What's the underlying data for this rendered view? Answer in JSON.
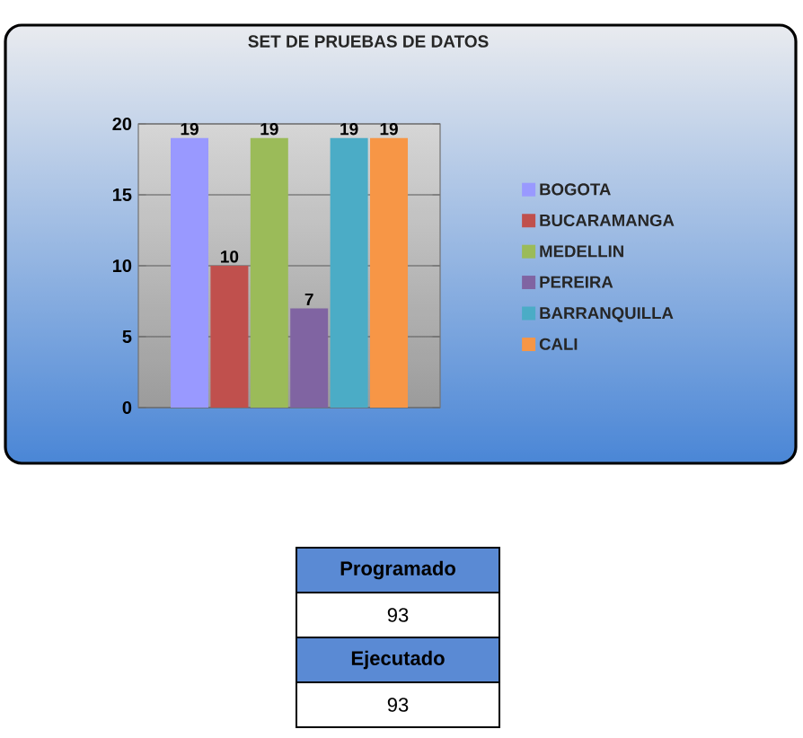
{
  "chart_data": [
    {
      "type": "bar",
      "title": "SET DE PRUEBAS DE DATOS",
      "categories": [
        null
      ],
      "series": [
        {
          "name": "BOGOTA",
          "color": "#9999ff",
          "values": [
            19
          ]
        },
        {
          "name": "BUCARAMANGA",
          "color": "#c0504d",
          "values": [
            10
          ]
        },
        {
          "name": "MEDELLIN",
          "color": "#9bbb59",
          "values": [
            19
          ]
        },
        {
          "name": "PEREIRA",
          "color": "#8064a2",
          "values": [
            7
          ]
        },
        {
          "name": "BARRANQUILLA",
          "color": "#4bacc6",
          "values": [
            19
          ]
        },
        {
          "name": "CALI",
          "color": "#f79646",
          "values": [
            19
          ]
        }
      ],
      "ylim": [
        0,
        20
      ],
      "yticks": [
        0,
        5,
        10,
        15,
        20
      ],
      "grid": "y",
      "legend": "right",
      "data_labels": true
    },
    {
      "type": "other",
      "annotations": [
        "Programado",
        "93",
        "Ejecutado",
        "93"
      ]
    }
  ]
}
